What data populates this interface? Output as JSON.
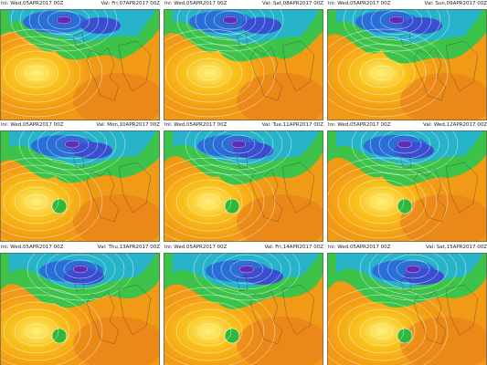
{
  "panels": [
    {
      "init": "Ini: Wed,05APR2017 00Z",
      "valid": "Val: Fri,07APR2017 00Z"
    },
    {
      "init": "Ini: Wed,05APR2017 00Z",
      "valid": "Val: Sat,08APR2017 00Z"
    },
    {
      "init": "Ini: Wed,05APR2017 00Z",
      "valid": "Val: Sun,09APR2017 00Z"
    },
    {
      "init": "Ini: Wed,05APR2017 00Z",
      "valid": "Val: Mon,10APR2017 00Z"
    },
    {
      "init": "Ini: Wed,05APR2017 00Z",
      "valid": "Val: Tue,11APR2017 00Z"
    },
    {
      "init": "Ini: Wed,05APR2017 00Z",
      "valid": "Val: Wed,12APR2017 00Z"
    },
    {
      "init": "Ini: Wed,05APR2017 00Z",
      "valid": "Val: Thu,13APR2017 00Z"
    },
    {
      "init": "Ini: Wed,05APR2017 00Z",
      "valid": "Val: Fri,14APR2017 00Z"
    },
    {
      "init": "Ini: Wed,05APR2017 00Z",
      "valid": "Val: Sat,15APR2017 00Z"
    }
  ]
}
